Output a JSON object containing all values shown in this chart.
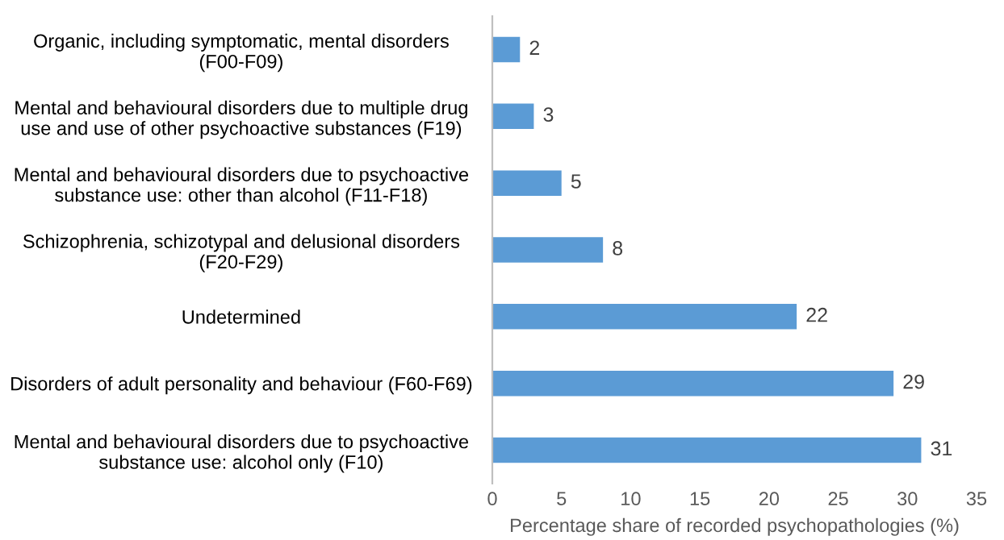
{
  "chart_data": {
    "type": "bar",
    "orientation": "horizontal",
    "xlabel": "Percentage share of recorded psychopathologies (%)",
    "categories": [
      "Organic, including symptomatic, mental disorders\n(F00-F09)",
      "Mental and behavioural disorders due to multiple drug\nuse and use of other psychoactive substances (F19)",
      "Mental and behavioural disorders due to psychoactive\nsubstance use: other than alcohol (F11-F18)",
      "Schizophrenia, schizotypal and delusional disorders\n(F20-F29)",
      "Undetermined",
      "Disorders of adult personality and behaviour (F60-F69)",
      "Mental and behavioural disorders due to psychoactive\nsubstance use: alcohol only (F10)"
    ],
    "values": [
      2,
      3,
      5,
      8,
      22,
      29,
      31
    ],
    "color": "#5b9bd5",
    "xlim": [
      0,
      35
    ],
    "xticks": [
      0,
      5,
      10,
      15,
      20,
      25,
      30,
      35
    ],
    "data_labels": true,
    "grid": false,
    "legend": false
  }
}
